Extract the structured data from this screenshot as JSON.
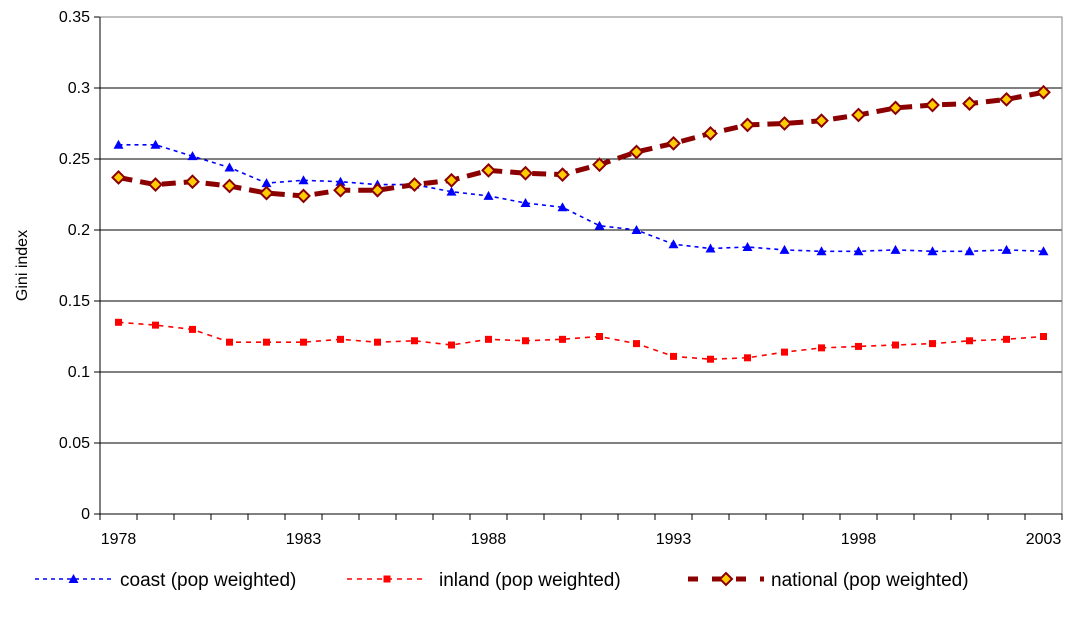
{
  "chart_data": {
    "type": "line",
    "title": "",
    "xlabel": "",
    "ylabel": "Gini index",
    "ylim": [
      0,
      0.35
    ],
    "xlim": [
      1977.5,
      2003.5
    ],
    "yticks": [
      "0",
      "0.05",
      "0.1",
      "0.15",
      "0.2",
      "0.25",
      "0.3",
      "0.35"
    ],
    "xticks": [
      "1978",
      "1983",
      "1988",
      "1993",
      "1998",
      "2003"
    ],
    "grid": "horizontal",
    "legend_position": "bottom",
    "x": [
      1978,
      1979,
      1980,
      1981,
      1982,
      1983,
      1984,
      1985,
      1986,
      1987,
      1988,
      1989,
      1990,
      1991,
      1992,
      1993,
      1994,
      1995,
      1996,
      1997,
      1998,
      1999,
      2000,
      2001,
      2002,
      2003
    ],
    "series": [
      {
        "name": "coast (pop weighted)",
        "color": "#0000ff",
        "marker": "triangle",
        "line": "dotted",
        "values": [
          0.26,
          0.26,
          0.252,
          0.244,
          0.233,
          0.235,
          0.234,
          0.232,
          0.232,
          0.227,
          0.224,
          0.219,
          0.216,
          0.203,
          0.2,
          0.19,
          0.187,
          0.188,
          0.186,
          0.185,
          0.185,
          0.186,
          0.185,
          0.185,
          0.186,
          0.185
        ]
      },
      {
        "name": "inland (pop weighted)",
        "color": "#ff0000",
        "marker": "square",
        "line": "dashed",
        "values": [
          0.135,
          0.133,
          0.13,
          0.121,
          0.121,
          0.121,
          0.123,
          0.121,
          0.122,
          0.119,
          0.123,
          0.122,
          0.123,
          0.125,
          0.12,
          0.111,
          0.109,
          0.11,
          0.114,
          0.117,
          0.118,
          0.119,
          0.12,
          0.122,
          0.123,
          0.125
        ]
      },
      {
        "name": "national (pop weighted)",
        "color": "#8b0000",
        "marker": "diamond",
        "marker_fill": "#ffcc00",
        "line": "dashed-thick",
        "values": [
          0.237,
          0.232,
          0.234,
          0.231,
          0.226,
          0.224,
          0.228,
          0.228,
          0.232,
          0.235,
          0.242,
          0.24,
          0.239,
          0.246,
          0.255,
          0.261,
          0.268,
          0.274,
          0.275,
          0.277,
          0.281,
          0.286,
          0.288,
          0.289,
          0.292,
          0.297
        ]
      }
    ]
  }
}
